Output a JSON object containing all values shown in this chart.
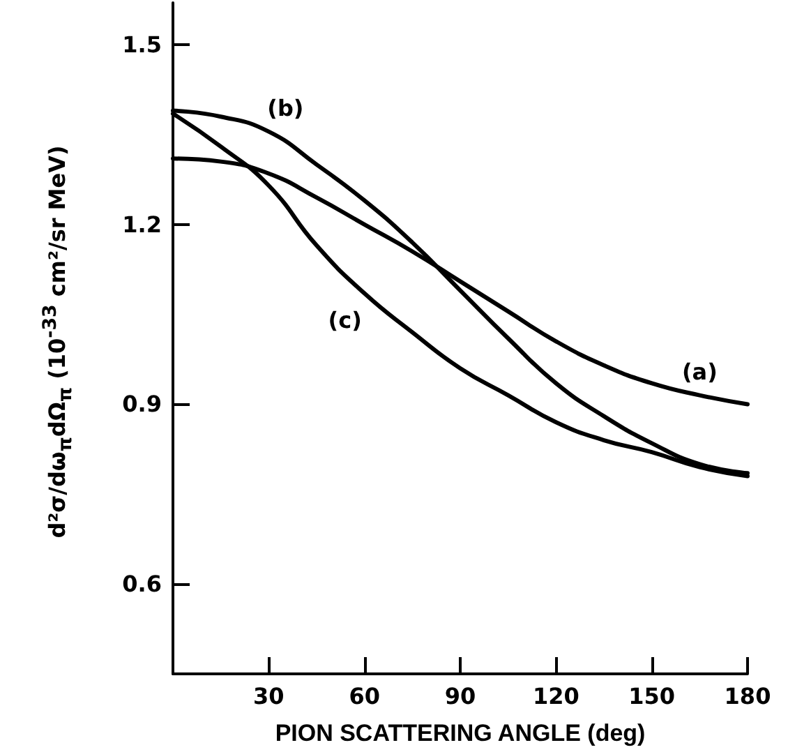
{
  "chart_data": {
    "type": "line",
    "xlabel": "PION SCATTERING ANGLE (deg)",
    "ylabel": "d²σ/dω$_{π}$dΩ$_{π}$ (10$^{-33}$ cm²/sr MeV)",
    "x": [
      0,
      15,
      30,
      45,
      60,
      75,
      90,
      105,
      120,
      135,
      150,
      165,
      180
    ],
    "series": [
      {
        "name": "(a)",
        "color": "#000000",
        "values": [
          1.31,
          1.305,
          1.285,
          1.245,
          1.2,
          1.155,
          1.105,
          1.055,
          1.005,
          0.965,
          0.935,
          0.915,
          0.9
        ]
      },
      {
        "name": "(b)",
        "color": "#000000",
        "values": [
          1.39,
          1.38,
          1.355,
          1.3,
          1.24,
          1.17,
          1.09,
          1.01,
          0.935,
          0.88,
          0.835,
          0.8,
          0.785
        ]
      },
      {
        "name": "(c)",
        "color": "#000000",
        "values": [
          1.385,
          1.33,
          1.265,
          1.165,
          1.085,
          1.02,
          0.96,
          0.915,
          0.87,
          0.84,
          0.82,
          0.795,
          0.78
        ]
      }
    ],
    "xlim": [
      0,
      180
    ],
    "xticks": [
      30,
      60,
      90,
      120,
      150,
      180
    ],
    "ylim": [
      0.45,
      1.57
    ],
    "yticks": [
      0.6,
      0.9,
      1.2,
      1.5
    ],
    "grid": false,
    "marker": "none",
    "line_style": "solid"
  }
}
